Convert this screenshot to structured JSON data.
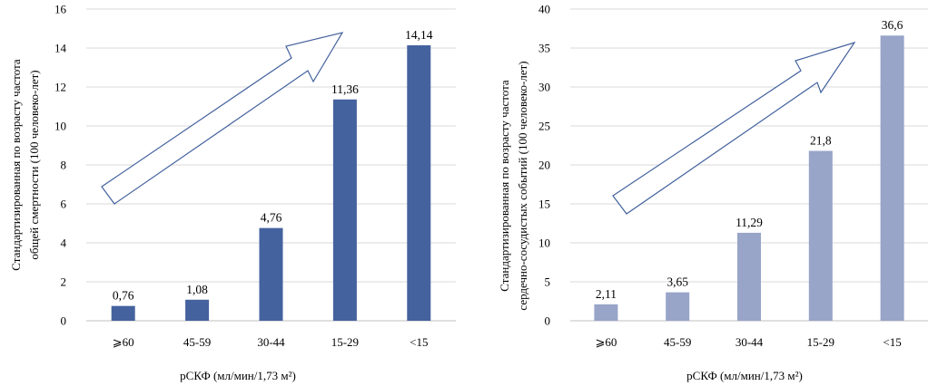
{
  "chart_data": [
    {
      "type": "bar",
      "categories": [
        "⩾60",
        "45-59",
        "30-44",
        "15-29",
        "<15"
      ],
      "values": [
        0.76,
        1.08,
        4.76,
        11.36,
        14.14
      ],
      "value_labels": [
        "0,76",
        "1,08",
        "4,76",
        "11,36",
        "14,14"
      ],
      "xlabel": "рСКФ (мл/мин/1,73 м²)",
      "ylabel_lines": [
        "Стандартизированная по возрасту частота",
        "общей смертности (100 человеко-лет)"
      ],
      "ylim": [
        0,
        16
      ],
      "yticks": [
        0,
        2,
        4,
        6,
        8,
        10,
        12,
        14,
        16
      ],
      "color": "#44629e",
      "grid": true,
      "annotation": "upward-trend-arrow"
    },
    {
      "type": "bar",
      "categories": [
        "⩾60",
        "45-59",
        "30-44",
        "15-29",
        "<15"
      ],
      "values": [
        2.11,
        3.65,
        11.29,
        21.8,
        36.6
      ],
      "value_labels": [
        "2,11",
        "3,65",
        "11,29",
        "21,8",
        "36,6"
      ],
      "xlabel": "рСКФ (мл/мин/1,73 м²)",
      "ylabel_lines": [
        "Стандартизированная по возрасту частота",
        "сердечно-сосудистых событий (100 человеко-лет)"
      ],
      "ylim": [
        0,
        40
      ],
      "yticks": [
        0,
        5,
        10,
        15,
        20,
        25,
        30,
        35,
        40
      ],
      "color": "#98a4c8",
      "grid": true,
      "annotation": "upward-trend-arrow"
    }
  ]
}
